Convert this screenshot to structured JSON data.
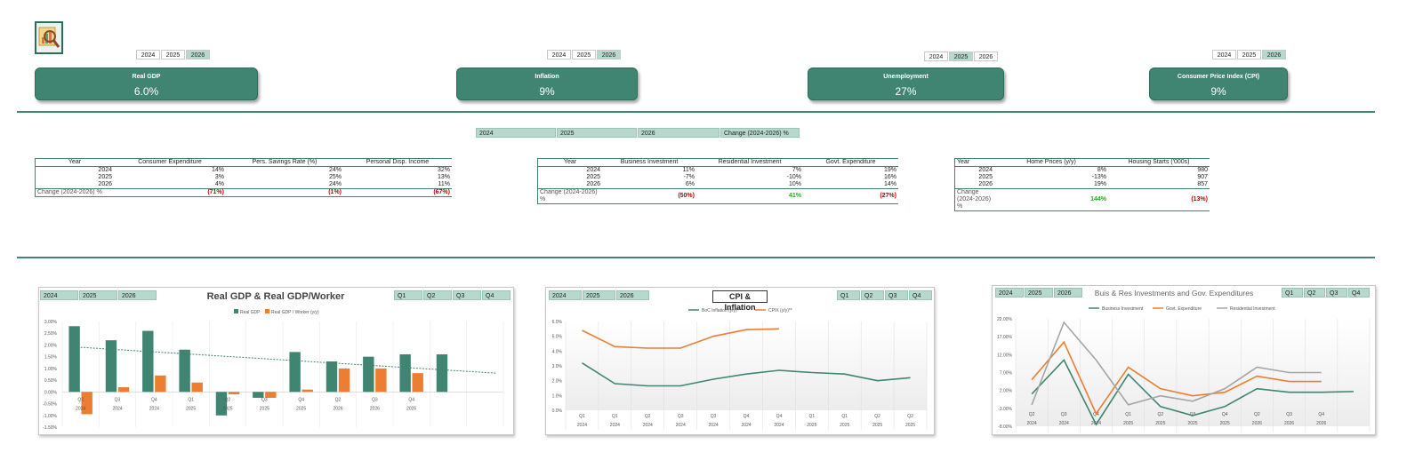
{
  "logo": "magnifier-chart-logo",
  "colors": {
    "accent": "#3f8572",
    "light": "#b7d9cd",
    "orange": "#ed7d31",
    "gray": "#a5a5a5",
    "neg": "#c00000",
    "pos": "#22aa22"
  },
  "kpis": [
    {
      "title": "Real GDP",
      "value": "6.0%",
      "years": [
        "2024",
        "2025",
        "2026"
      ],
      "selected": 2
    },
    {
      "title": "Inflation",
      "value": "9%",
      "years": [
        "2024",
        "2025",
        "2026"
      ],
      "selected": 2
    },
    {
      "title": "Unemployment",
      "value": "27%",
      "years": [
        "2024",
        "2025",
        "2026"
      ],
      "selected": 1
    },
    {
      "title": "Consumer Price Index (CPI)",
      "value": "9%",
      "years": [
        "2024",
        "2025",
        "2026"
      ],
      "selected": 2
    }
  ],
  "filter": [
    "2024",
    "2025",
    "2026",
    "Change (2024-2026) %"
  ],
  "tables": [
    {
      "headers": [
        "Year",
        "Consumer Expenditure",
        "Pers. Savings Rate (%)",
        "Personal Disp. Income"
      ],
      "rows": [
        [
          "2024",
          "14%",
          "24%",
          "32%"
        ],
        [
          "2025",
          "3%",
          "25%",
          "13%"
        ],
        [
          "2026",
          "4%",
          "24%",
          "11%"
        ]
      ],
      "change": [
        "Change (2024-2026) %",
        "(71%)",
        "(1%)",
        "(67%)"
      ]
    },
    {
      "headers": [
        "Year",
        "Business Investment",
        "Residential Investment",
        "Govt. Expenditure"
      ],
      "rows": [
        [
          "2024",
          "11%",
          "7%",
          "19%"
        ],
        [
          "2025",
          "-7%",
          "-10%",
          "16%"
        ],
        [
          "2026",
          "6%",
          "10%",
          "14%"
        ]
      ],
      "change": [
        "Change (2024-2026) %",
        "(50%)",
        "41%",
        "(27%)"
      ]
    },
    {
      "headers": [
        "Year",
        "Home Prices (y/y)",
        "Housing Starts ('000s)"
      ],
      "rows": [
        [
          "2024",
          "8%",
          "980"
        ],
        [
          "2025",
          "-13%",
          "907"
        ],
        [
          "2026",
          "19%",
          "857"
        ]
      ],
      "change": [
        "Change (2024-2026) %",
        "144%",
        "(13%)"
      ]
    }
  ],
  "charts": {
    "years": [
      "2024",
      "2025",
      "2026"
    ],
    "quarters": [
      "Q1",
      "Q2",
      "Q3",
      "Q4"
    ]
  },
  "chart_data": [
    {
      "type": "bar",
      "title": "Real GDP & Real GDP/Worker",
      "categories": [
        "Q2|2024",
        "Q3|2024",
        "Q4|2024",
        "Q1|2025",
        "Q2|2025",
        "Q3|2025",
        "Q4|2025",
        "Q2|2026",
        "Q3|2026",
        "Q4|2026",
        "",
        ""
      ],
      "series": [
        {
          "name": "Real GDP",
          "values": [
            2.8,
            2.2,
            2.6,
            1.8,
            -1.0,
            -0.25,
            1.7,
            1.3,
            1.5,
            1.6,
            1.6,
            null
          ]
        },
        {
          "name": "Real GDP / Worker (y/y)",
          "values": [
            -0.95,
            0.2,
            0.7,
            0.4,
            -0.1,
            -0.25,
            0.1,
            1.0,
            1.0,
            0.8,
            null,
            null
          ]
        }
      ],
      "trend": {
        "start": 1.9,
        "end": 0.8
      },
      "yticks": [
        "3.00%",
        "2.50%",
        "2.00%",
        "1.50%",
        "1.00%",
        "0.50%",
        "0.00%",
        "-0.50%",
        "-1.00%",
        "-1.50%"
      ],
      "ylim": [
        -1.5,
        3.0
      ],
      "legend": "top-center"
    },
    {
      "type": "line",
      "title": "CPI & Inflation",
      "categories": [
        "Q1|2024",
        "Q1|2024",
        "Q2|2024",
        "Q3|2024",
        "Q3|2024",
        "Q4|2024",
        "Q4|2024",
        "Q1|2025",
        "Q1|2025",
        "Q2|2025",
        "Q2|2025"
      ],
      "series": [
        {
          "name": "BoC Inflation (y/y)***",
          "values": [
            3.2,
            1.8,
            1.65,
            1.65,
            2.1,
            2.45,
            2.7,
            2.55,
            2.45,
            2.0,
            2.2
          ]
        },
        {
          "name": "CPIX (y/y)**",
          "values": [
            5.4,
            4.3,
            4.2,
            4.2,
            5.0,
            5.45,
            5.5,
            null,
            null,
            null,
            null
          ]
        }
      ],
      "yticks": [
        "6.0%",
        "5.0%",
        "4.0%",
        "3.0%",
        "2.0%",
        "1.0%",
        "0.0%"
      ],
      "ylim": [
        0,
        6
      ],
      "legend": "top-center"
    },
    {
      "type": "line",
      "title": "Buis & Res Investments and Gov. Expenditures",
      "categories": [
        "Q2|2024",
        "Q3|2024",
        "Q4|2024",
        "Q1|2025",
        "Q2|2025",
        "Q3|2025",
        "Q4|2025",
        "Q2|2026",
        "Q3|2026",
        "Q4|2026",
        ""
      ],
      "series": [
        {
          "name": "Business Investment",
          "values": [
            1.0,
            10.5,
            -7.5,
            6.5,
            -2.5,
            -5.0,
            -2.5,
            2.5,
            1.5,
            1.5,
            1.7
          ]
        },
        {
          "name": "Govt. Expenditure",
          "values": [
            5.0,
            15.5,
            -4.5,
            8.5,
            2.5,
            0.5,
            1.5,
            6.0,
            4.5,
            4.5,
            null
          ]
        },
        {
          "name": "Residential Investment",
          "values": [
            -2.0,
            21.0,
            10.5,
            -2.0,
            0.5,
            -1.0,
            2.5,
            8.5,
            7.0,
            7.0,
            null
          ]
        }
      ],
      "yticks": [
        "22.00%",
        "17.00%",
        "12.00%",
        "7.00%",
        "2.00%",
        "-3.00%",
        "-8.00%"
      ],
      "ylim": [
        -8,
        22
      ],
      "legend": "top-center"
    }
  ]
}
